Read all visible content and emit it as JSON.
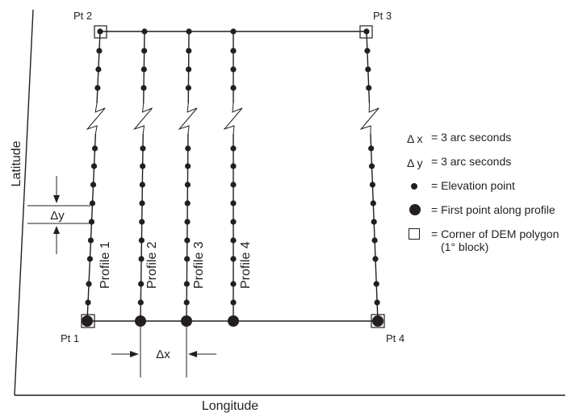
{
  "diagram": {
    "axes": {
      "y_label": "Latitude",
      "x_label": "Longitude"
    },
    "corners": {
      "pt1": "Pt 1",
      "pt2": "Pt 2",
      "pt3": "Pt 3",
      "pt4": "Pt 4"
    },
    "profiles": [
      "Profile 1",
      "Profile 2",
      "Profile 3",
      "Profile 4"
    ],
    "delta_x_label": "Δx",
    "delta_y_label": "Δy",
    "legend": [
      {
        "symbol": "Δ x",
        "symbol_type": "text",
        "text": "= 3 arc seconds"
      },
      {
        "symbol": "Δ y",
        "symbol_type": "text",
        "text": "= 3 arc seconds"
      },
      {
        "symbol": "small-dot",
        "symbol_type": "dot",
        "text": "= Elevation point"
      },
      {
        "symbol": "large-dot",
        "symbol_type": "big-dot",
        "text": "= First point along profile"
      },
      {
        "symbol": "square",
        "symbol_type": "box",
        "text": "= Corner of DEM polygon",
        "text2": "(1° block)"
      }
    ]
  }
}
